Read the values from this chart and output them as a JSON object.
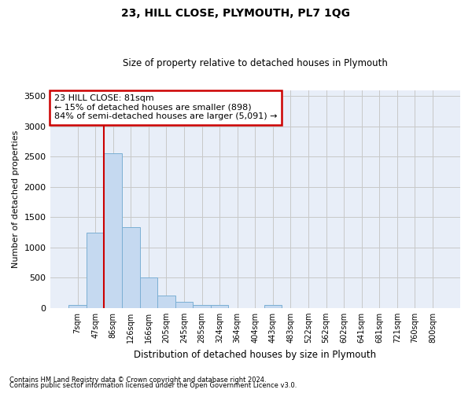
{
  "title": "23, HILL CLOSE, PLYMOUTH, PL7 1QG",
  "subtitle": "Size of property relative to detached houses in Plymouth",
  "xlabel": "Distribution of detached houses by size in Plymouth",
  "ylabel": "Number of detached properties",
  "bar_labels": [
    "7sqm",
    "47sqm",
    "86sqm",
    "126sqm",
    "166sqm",
    "205sqm",
    "245sqm",
    "285sqm",
    "324sqm",
    "364sqm",
    "404sqm",
    "443sqm",
    "483sqm",
    "522sqm",
    "562sqm",
    "602sqm",
    "641sqm",
    "681sqm",
    "721sqm",
    "760sqm",
    "800sqm"
  ],
  "bar_values": [
    50,
    1250,
    2560,
    1340,
    500,
    200,
    100,
    50,
    50,
    0,
    0,
    50,
    0,
    0,
    0,
    0,
    0,
    0,
    0,
    0,
    0
  ],
  "bar_color": "#c5d9f0",
  "bar_edge_color": "#7bafd4",
  "grid_color": "#c8c8c8",
  "bg_color": "#e8eef8",
  "vline_color": "#cc0000",
  "vline_bar_index": 2,
  "annotation_text": "23 HILL CLOSE: 81sqm\n← 15% of detached houses are smaller (898)\n84% of semi-detached houses are larger (5,091) →",
  "annotation_box_color": "#cc0000",
  "ylim": [
    0,
    3600
  ],
  "yticks": [
    0,
    500,
    1000,
    1500,
    2000,
    2500,
    3000,
    3500
  ],
  "footer_line1": "Contains HM Land Registry data © Crown copyright and database right 2024.",
  "footer_line2": "Contains public sector information licensed under the Open Government Licence v3.0."
}
